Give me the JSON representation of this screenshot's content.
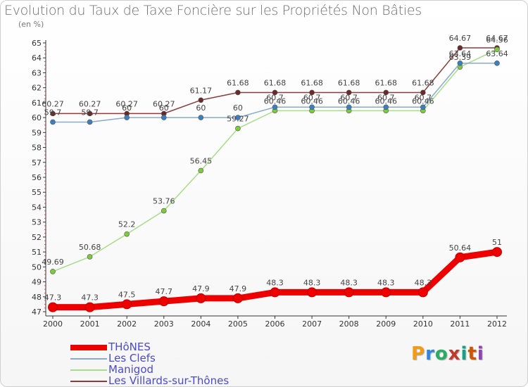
{
  "title": "Evolution du Taux de Taxe Foncière sur les Propriétés Non Bâties",
  "unit": "(en %)",
  "logo": {
    "text": "Proxiti",
    "colors": [
      "#f39c12",
      "#2e86de",
      "#27ae60",
      "#c0392b",
      "#16a085",
      "#d35400",
      "#8e44ad"
    ]
  },
  "chart_data": {
    "type": "line",
    "title": "Evolution du Taux de Taxe Foncière sur les Propriétés Non Bâties",
    "ylabel": "(en %)",
    "xlabel": "",
    "ylim": [
      47,
      65
    ],
    "yticks": [
      47,
      48,
      49,
      50,
      51,
      52,
      53,
      54,
      55,
      56,
      57,
      58,
      59,
      60,
      61,
      62,
      63,
      64,
      65
    ],
    "categories": [
      "2000",
      "2001",
      "2002",
      "2003",
      "2004",
      "2005",
      "2006",
      "2007",
      "2008",
      "2009",
      "2010",
      "2011",
      "2012"
    ],
    "series": [
      {
        "name": "THôNES",
        "color": "#ee0000",
        "marker_color": "#ee0000",
        "values": [
          47.3,
          47.3,
          47.5,
          47.7,
          47.9,
          47.9,
          48.3,
          48.3,
          48.3,
          48.3,
          48.3,
          50.64,
          51
        ],
        "labels": [
          "47.3",
          "47.3",
          "47.5",
          "47.7",
          "47.9",
          "47.9",
          "48.3",
          "48.3",
          "48.3",
          "48.3",
          "48.3",
          "50.64",
          "51"
        ]
      },
      {
        "name": "Les Clefs",
        "color": "#88aacc",
        "marker_color": "#3a7fc0",
        "values": [
          59.7,
          59.7,
          60,
          60,
          60,
          60,
          60.7,
          60.7,
          60.7,
          60.7,
          60.7,
          63.64,
          63.64
        ],
        "labels": [
          "59.7",
          "59.7",
          "60",
          "60",
          "60",
          "60",
          "60.7",
          "60.7",
          "60.7",
          "60.7",
          "60.7",
          "63.64",
          "63.64"
        ]
      },
      {
        "name": "Manigod",
        "color": "#a8dd88",
        "marker_color": "#7ccc3a",
        "values": [
          49.69,
          50.68,
          52.2,
          53.76,
          56.45,
          59.27,
          60.46,
          60.46,
          60.46,
          60.46,
          60.46,
          63.39,
          64.56
        ],
        "labels": [
          "49.69",
          "50.68",
          "52.2",
          "53.76",
          "56.45",
          "59.27",
          "60.46",
          "60.46",
          "60.46",
          "60.46",
          "60.46",
          "63.39",
          "64.56"
        ]
      },
      {
        "name": "Les Villards-sur-Thônes",
        "color": "#8c3c3c",
        "marker_color": "#6b2a2a",
        "values": [
          60.27,
          60.27,
          60.27,
          60.27,
          61.17,
          61.68,
          61.68,
          61.68,
          61.68,
          61.68,
          61.68,
          64.67,
          64.67
        ],
        "labels": [
          "60.27",
          "60.27",
          "60.27",
          "60.27",
          "61.17",
          "61.68",
          "61.68",
          "61.68",
          "61.68",
          "61.68",
          "61.68",
          "64.67",
          "64.67"
        ]
      }
    ],
    "legend": "bottom-left",
    "grid": false
  }
}
